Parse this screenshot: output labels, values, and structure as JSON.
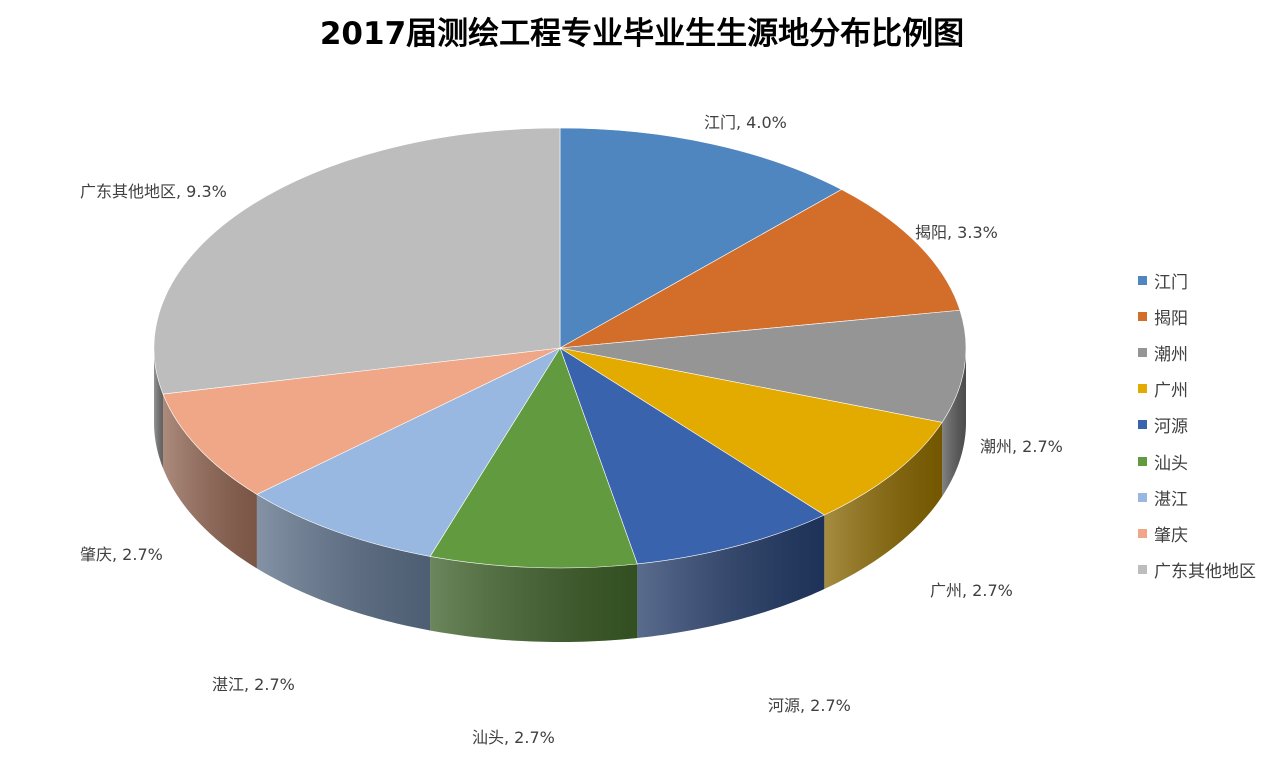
{
  "chart_data": {
    "type": "pie",
    "title": "2017届测绘工程专业毕业生生源地分布比例图",
    "slices": [
      {
        "name": "江门",
        "value": 4.0,
        "label": "江门, 4.0%",
        "color": "#4f86c0"
      },
      {
        "name": "揭阳",
        "value": 3.3,
        "label": "揭阳, 3.3%",
        "color": "#d36e2a"
      },
      {
        "name": "潮州",
        "value": 2.7,
        "label": "潮州, 2.7%",
        "color": "#959595"
      },
      {
        "name": "广州",
        "value": 2.7,
        "label": "广州, 2.7%",
        "color": "#e3aa00"
      },
      {
        "name": "河源",
        "value": 2.7,
        "label": "河源, 2.7%",
        "color": "#3a63ae"
      },
      {
        "name": "汕头",
        "value": 2.7,
        "label": "汕头, 2.7%",
        "color": "#629b3f"
      },
      {
        "name": "湛江",
        "value": 2.7,
        "label": "湛江, 2.7%",
        "color": "#98b8e1"
      },
      {
        "name": "肇庆",
        "value": 2.7,
        "label": "肇庆, 2.7%",
        "color": "#f0a787"
      },
      {
        "name": "广东其他地区",
        "value": 9.3,
        "label": "广东其他地区, 9.3%",
        "color": "#bdbdbd"
      }
    ],
    "legend_position": "right"
  }
}
